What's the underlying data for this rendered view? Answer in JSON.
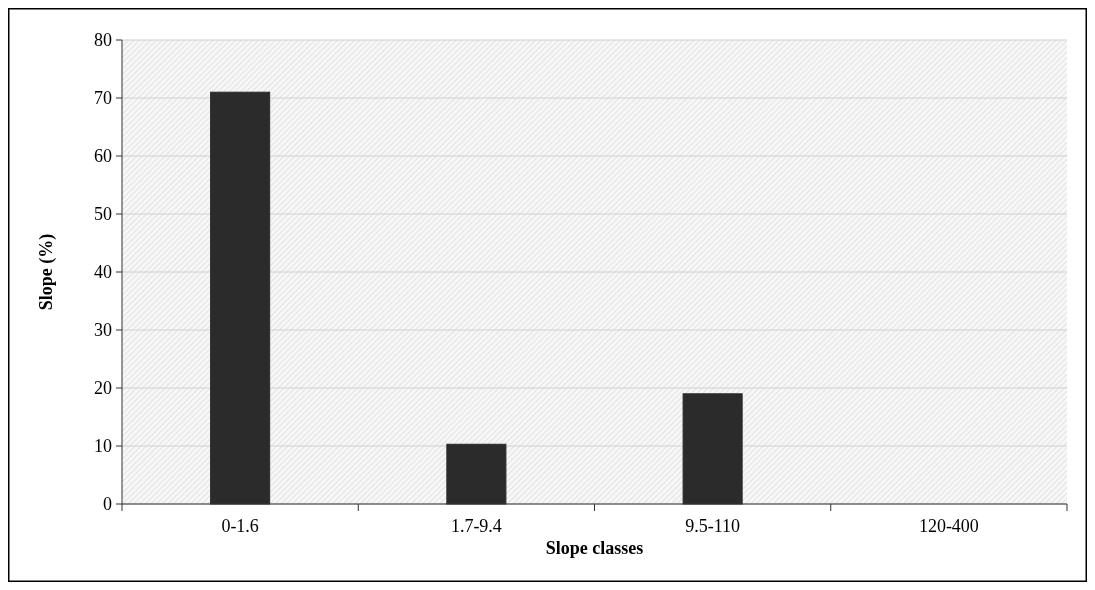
{
  "chart_data": {
    "type": "bar",
    "xlabel": "Slope classes",
    "ylabel": "Slope (%)",
    "categories": [
      "0-1.6",
      "1.7-9.4",
      "9.5-110",
      "120-400"
    ],
    "values": [
      71,
      10.3,
      19,
      0
    ],
    "color": "#2b2b2b",
    "ylim": [
      0,
      80
    ],
    "yticks": [
      0,
      10,
      20,
      30,
      40,
      50,
      60,
      70,
      80
    ],
    "grid": "y"
  }
}
